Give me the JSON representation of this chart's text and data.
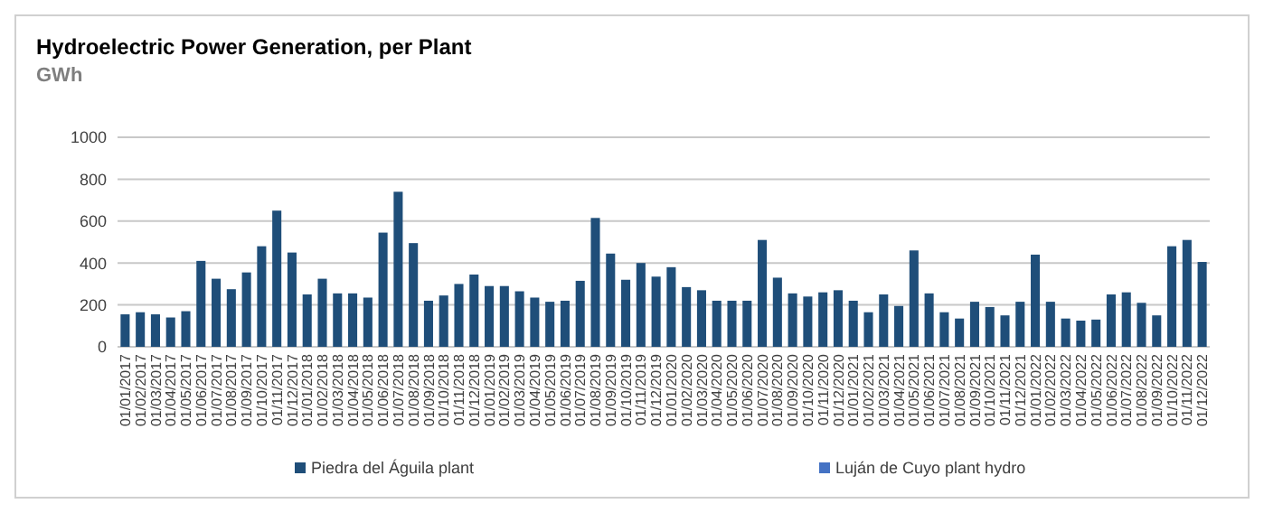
{
  "chart_data": {
    "type": "bar",
    "title": "Hydroelectric Power Generation, per Plant",
    "subtitle": "GWh",
    "categories": [
      "01/01/2017",
      "01/02/2017",
      "01/03/2017",
      "01/04/2017",
      "01/05/2017",
      "01/06/2017",
      "01/07/2017",
      "01/08/2017",
      "01/09/2017",
      "01/10/2017",
      "01/11/2017",
      "01/12/2017",
      "01/01/2018",
      "01/02/2018",
      "01/03/2018",
      "01/04/2018",
      "01/05/2018",
      "01/06/2018",
      "01/07/2018",
      "01/08/2018",
      "01/09/2018",
      "01/10/2018",
      "01/11/2018",
      "01/12/2018",
      "01/01/2019",
      "01/02/2019",
      "01/03/2019",
      "01/04/2019",
      "01/05/2019",
      "01/06/2019",
      "01/07/2019",
      "01/08/2019",
      "01/09/2019",
      "01/10/2019",
      "01/11/2019",
      "01/12/2019",
      "01/01/2020",
      "01/02/2020",
      "01/03/2020",
      "01/04/2020",
      "01/05/2020",
      "01/06/2020",
      "01/07/2020",
      "01/08/2020",
      "01/09/2020",
      "01/10/2020",
      "01/11/2020",
      "01/12/2020",
      "01/01/2021",
      "01/02/2021",
      "01/03/2021",
      "01/04/2021",
      "01/05/2021",
      "01/06/2021",
      "01/07/2021",
      "01/08/2021",
      "01/09/2021",
      "01/10/2021",
      "01/11/2021",
      "01/12/2021",
      "01/01/2022",
      "01/02/2022",
      "01/03/2022",
      "01/04/2022",
      "01/05/2022",
      "01/06/2022",
      "01/07/2022",
      "01/08/2022",
      "01/09/2022",
      "01/10/2022",
      "01/11/2022",
      "01/12/2022"
    ],
    "series": [
      {
        "name": "Piedra del Águila plant",
        "color": "#1f4e79",
        "values": [
          155,
          165,
          155,
          140,
          170,
          410,
          325,
          275,
          355,
          480,
          650,
          450,
          250,
          325,
          255,
          255,
          235,
          545,
          740,
          495,
          220,
          245,
          300,
          345,
          290,
          290,
          265,
          235,
          215,
          220,
          315,
          615,
          445,
          320,
          400,
          335,
          380,
          285,
          270,
          220,
          220,
          220,
          510,
          330,
          255,
          240,
          260,
          270,
          220,
          165,
          250,
          195,
          460,
          255,
          165,
          135,
          215,
          190,
          150,
          215,
          440,
          215,
          135,
          125,
          130,
          250,
          260,
          210,
          150,
          480,
          510,
          405
        ]
      },
      {
        "name": "Luján de Cuyo plant hydro",
        "color": "#4472c4",
        "values": [
          null,
          null,
          null,
          null,
          null,
          null,
          null,
          null,
          null,
          null,
          null,
          null,
          null,
          null,
          null,
          null,
          null,
          null,
          null,
          null,
          null,
          null,
          null,
          null,
          null,
          null,
          null,
          null,
          null,
          null,
          null,
          null,
          null,
          null,
          null,
          null,
          null,
          null,
          null,
          null,
          null,
          null,
          null,
          null,
          null,
          null,
          null,
          null,
          null,
          null,
          null,
          null,
          null,
          null,
          null,
          null,
          null,
          null,
          null,
          null,
          null,
          null,
          null,
          null,
          null,
          null,
          null,
          null,
          null,
          null,
          null,
          null
        ]
      }
    ],
    "ylim": [
      0,
      1000
    ],
    "yticks": [
      0,
      200,
      400,
      600,
      800,
      1000
    ],
    "grid": "y",
    "legend": "bottom"
  }
}
